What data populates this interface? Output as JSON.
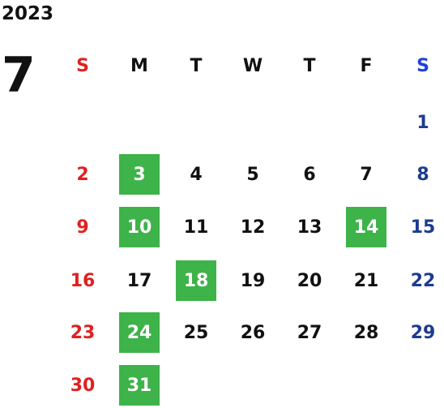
{
  "calendar": {
    "year": "2023",
    "month": "7",
    "weekdays": [
      "S",
      "M",
      "T",
      "W",
      "T",
      "F",
      "S"
    ],
    "days": [
      "",
      "",
      "",
      "",
      "",
      "",
      "1",
      "2",
      "3",
      "4",
      "5",
      "6",
      "7",
      "8",
      "9",
      "10",
      "11",
      "12",
      "13",
      "14",
      "15",
      "16",
      "17",
      "18",
      "19",
      "20",
      "21",
      "22",
      "23",
      "24",
      "25",
      "26",
      "27",
      "28",
      "29",
      "30",
      "31",
      "",
      "",
      "",
      "",
      ""
    ],
    "highlighted_days": [
      "3",
      "10",
      "14",
      "18",
      "24",
      "31"
    ],
    "colors": {
      "sunday": "#e02020",
      "saturday_header": "#1f3fd8",
      "saturday": "#1d3c8f",
      "weekday": "#111111",
      "highlight_bg": "#3db34a",
      "highlight_text": "#ffffff"
    }
  }
}
